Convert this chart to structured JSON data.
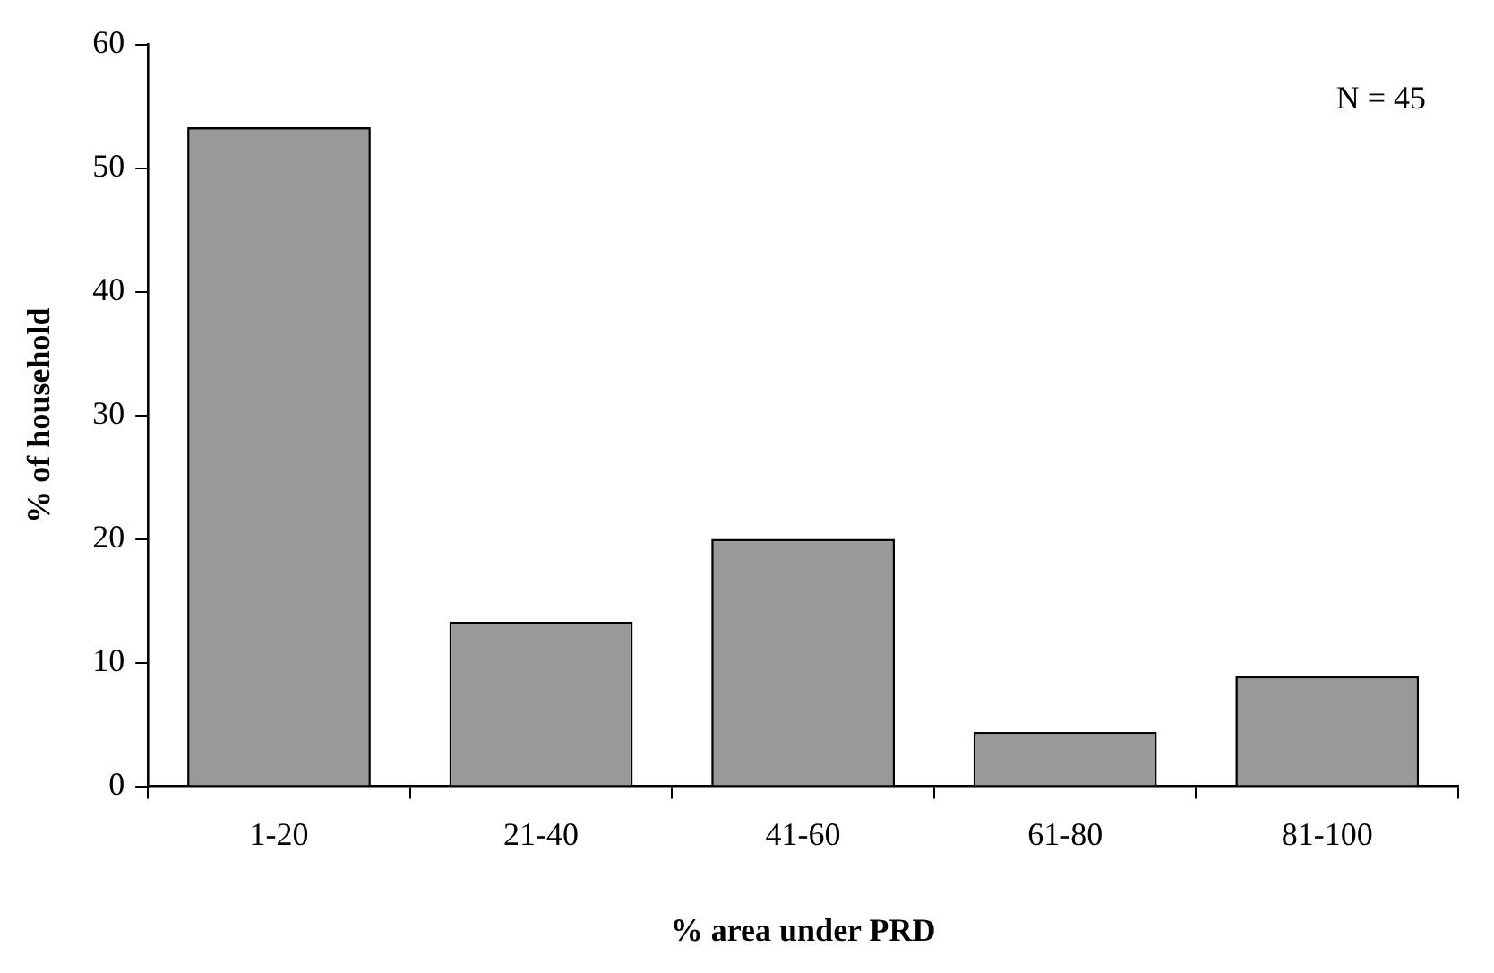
{
  "chart_data": {
    "type": "bar",
    "xlabel": "% area under PRD",
    "ylabel": "% of household",
    "categories": [
      "1-20",
      "21-40",
      "41-60",
      "61-80",
      "81-100"
    ],
    "values": [
      53.3,
      13.3,
      20,
      4.4,
      8.9
    ],
    "color": "#999999",
    "ylim": [
      0,
      60
    ],
    "yticks": [
      0,
      10,
      20,
      30,
      40,
      50,
      60
    ],
    "grid": false,
    "annotations": [
      "N = 45"
    ]
  }
}
